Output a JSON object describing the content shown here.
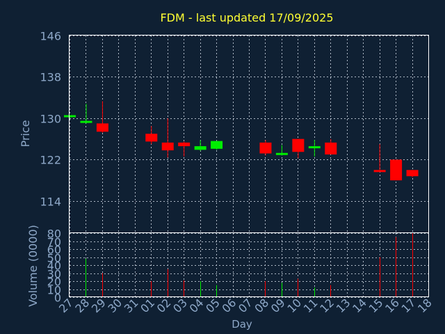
{
  "chart_data": {
    "type": "candlestick",
    "title": "FDM - last updated 17/09/2025",
    "xlabel": "Day",
    "dates": [
      "27",
      "28",
      "29",
      "30",
      "31",
      "01",
      "02",
      "03",
      "04",
      "05",
      "06",
      "07",
      "08",
      "09",
      "10",
      "11",
      "12",
      "13",
      "14",
      "15",
      "16",
      "17",
      "18"
    ],
    "price_panel": {
      "ylabel": "Price",
      "ylim": [
        107.8,
        146
      ],
      "yticks": [
        "114",
        "122",
        "130",
        "138",
        "146"
      ],
      "candles": [
        {
          "day": "27",
          "open": 130.2,
          "high": 130.6,
          "low": 130.0,
          "close": 130.6
        },
        {
          "day": "28",
          "open": 129.2,
          "high": 132.8,
          "low": 129.0,
          "close": 129.5
        },
        {
          "day": "29",
          "open": 129.0,
          "high": 133.3,
          "low": 127.2,
          "close": 127.4
        },
        {
          "day": "01",
          "open": 127.0,
          "high": 128.5,
          "low": 125.0,
          "close": 125.5
        },
        {
          "day": "02",
          "open": 125.3,
          "high": 130.0,
          "low": 122.4,
          "close": 123.8
        },
        {
          "day": "03",
          "open": 125.3,
          "high": 125.5,
          "low": 122.6,
          "close": 124.6
        },
        {
          "day": "04",
          "open": 123.9,
          "high": 125.8,
          "low": 123.7,
          "close": 124.6
        },
        {
          "day": "05",
          "open": 124.1,
          "high": 125.6,
          "low": 123.9,
          "close": 125.6
        },
        {
          "day": "08",
          "open": 125.3,
          "high": 125.8,
          "low": 122.8,
          "close": 123.2
        },
        {
          "day": "09",
          "open": 123.0,
          "high": 124.8,
          "low": 122.8,
          "close": 123.3
        },
        {
          "day": "10",
          "open": 126.0,
          "high": 126.0,
          "low": 122.3,
          "close": 123.5
        },
        {
          "day": "11",
          "open": 124.2,
          "high": 125.8,
          "low": 122.6,
          "close": 124.6
        },
        {
          "day": "12",
          "open": 125.3,
          "high": 126.0,
          "low": 123.0,
          "close": 123.0
        },
        {
          "day": "15",
          "open": 120.0,
          "high": 125.0,
          "low": 119.7,
          "close": 119.7
        },
        {
          "day": "16",
          "open": 122.0,
          "high": 122.0,
          "low": 118.0,
          "close": 118.0
        },
        {
          "day": "17",
          "open": 120.0,
          "high": 120.0,
          "low": 118.6,
          "close": 118.8
        }
      ]
    },
    "volume_panel": {
      "ylabel": "Volume (0000)",
      "ylim": [
        0,
        80
      ],
      "yticks": [
        "0",
        "10",
        "20",
        "30",
        "40",
        "50",
        "60",
        "70",
        "80"
      ],
      "volumes": [
        {
          "day": "28",
          "value": 48,
          "direction": "up"
        },
        {
          "day": "29",
          "value": 30,
          "direction": "down"
        },
        {
          "day": "01",
          "value": 20,
          "direction": "down"
        },
        {
          "day": "02",
          "value": 35,
          "direction": "down"
        },
        {
          "day": "03",
          "value": 21,
          "direction": "down"
        },
        {
          "day": "04",
          "value": 20,
          "direction": "up"
        },
        {
          "day": "05",
          "value": 15,
          "direction": "up"
        },
        {
          "day": "08",
          "value": 20,
          "direction": "down"
        },
        {
          "day": "09",
          "value": 18,
          "direction": "up"
        },
        {
          "day": "10",
          "value": 23,
          "direction": "down"
        },
        {
          "day": "11",
          "value": 12,
          "direction": "up"
        },
        {
          "day": "12",
          "value": 15,
          "direction": "down"
        },
        {
          "day": "15",
          "value": 50,
          "direction": "down"
        },
        {
          "day": "16",
          "value": 75,
          "direction": "down"
        },
        {
          "day": "17",
          "value": 80,
          "direction": "down"
        }
      ]
    },
    "colors": {
      "background": "#0f2033",
      "axis": "#8ea8c8",
      "grid": "#aeb9c6",
      "title": "#ffff33",
      "up": "#00ee00",
      "down": "#ff0000"
    },
    "grid": true,
    "legend": "none"
  }
}
